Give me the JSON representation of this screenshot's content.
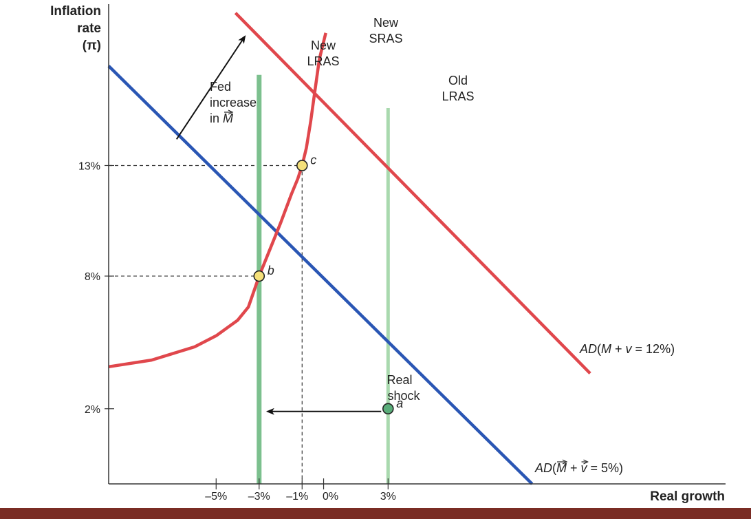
{
  "colors": {
    "ad_low": "#2a56b4",
    "ad_high": "#e0474c",
    "sras": "#e0474c",
    "new_lras": "#7cc08e",
    "old_lras": "#a9d9ae",
    "point_a": "#5aae7a",
    "point_bc": "#f5e07a",
    "bottom_bar": "#7a2c24"
  },
  "chart_data": {
    "type": "line",
    "ylabel": "Inflation rate (π)",
    "ylabel_lines": [
      "Inflation",
      "rate",
      "(π)"
    ],
    "xlabel": "Real growth",
    "x_ticks": [
      {
        "value": -5,
        "label": "–5%"
      },
      {
        "value": -3,
        "label": "–3%"
      },
      {
        "value": -1,
        "label": "–1%"
      },
      {
        "value": 0,
        "label": "0%"
      },
      {
        "value": 3,
        "label": "3%"
      }
    ],
    "y_ticks": [
      {
        "value": 2,
        "label": "2%"
      },
      {
        "value": 8,
        "label": "8%"
      },
      {
        "value": 13,
        "label": "13%"
      }
    ],
    "xlim": [
      -10,
      18.7
    ],
    "ylim": [
      -1.4,
      20.3
    ],
    "series": [
      {
        "key": "ad_low",
        "label": "AD(M + v = 5%)",
        "x": [
          -10,
          9.7
        ],
        "y": [
          17.5,
          -1.4
        ]
      },
      {
        "key": "ad_high",
        "label": "AD(M + v = 12%)",
        "x": [
          -4.1,
          12.4
        ],
        "y": [
          19.9,
          3.6
        ]
      },
      {
        "key": "sras",
        "label_lines": [
          "New",
          "SRAS"
        ],
        "x": [
          -10,
          -8,
          -6,
          -5,
          -4,
          -3.5,
          -3,
          -2.5,
          -2,
          -1.5,
          -1.2,
          -1,
          -0.8,
          -0.6,
          -0.4,
          -0.2,
          0.1
        ],
        "y": [
          3.9,
          4.2,
          4.8,
          5.3,
          6.0,
          6.6,
          8.0,
          9.2,
          10.4,
          11.7,
          12.4,
          13.0,
          13.8,
          15.0,
          16.4,
          17.8,
          19.0
        ]
      }
    ],
    "vertical_lines": [
      {
        "key": "new_lras",
        "x": -3,
        "y_top": 17.1,
        "label_lines": [
          "New",
          "LRAS"
        ]
      },
      {
        "key": "old_lras",
        "x": 3,
        "y_top": 15.6,
        "label_lines": [
          "Old",
          "LRAS"
        ]
      }
    ],
    "points": [
      {
        "label": "a",
        "x": 3,
        "y": 2,
        "key": "point_a"
      },
      {
        "label": "b",
        "x": -3,
        "y": 8,
        "key": "point_bc"
      },
      {
        "label": "c",
        "x": -1,
        "y": 13,
        "key": "point_bc"
      }
    ],
    "annotations": {
      "real_shock": {
        "lines": [
          "Real",
          "shock"
        ],
        "from_x": 3,
        "to_x": -3,
        "y": 2
      },
      "fed": {
        "lines": [
          "Fed",
          "increase",
          "in M"
        ],
        "from": [
          -7,
          14.5
        ],
        "to": [
          -3.5,
          19
        ]
      }
    }
  }
}
